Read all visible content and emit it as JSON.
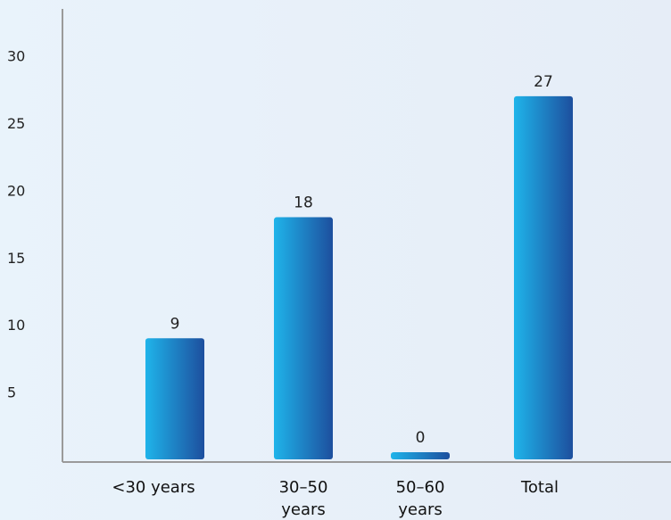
{
  "chart_data": {
    "type": "bar",
    "categories": [
      [
        "<30 years"
      ],
      [
        "30–50",
        "years"
      ],
      [
        "50–60",
        "years"
      ],
      [
        "Total"
      ]
    ],
    "values": [
      9,
      18,
      0,
      27
    ],
    "data_labels": [
      "9",
      "18",
      "0",
      "27"
    ],
    "y_ticks": [
      5,
      10,
      15,
      20,
      25,
      30
    ],
    "ylim": [
      0,
      33
    ],
    "title": "",
    "xlabel": "",
    "ylabel": "",
    "grid": false,
    "colors": {
      "bar_light": "#1fb4ea",
      "bar_dark": "#1d4f9e",
      "axis": "#9a9a9a"
    }
  }
}
